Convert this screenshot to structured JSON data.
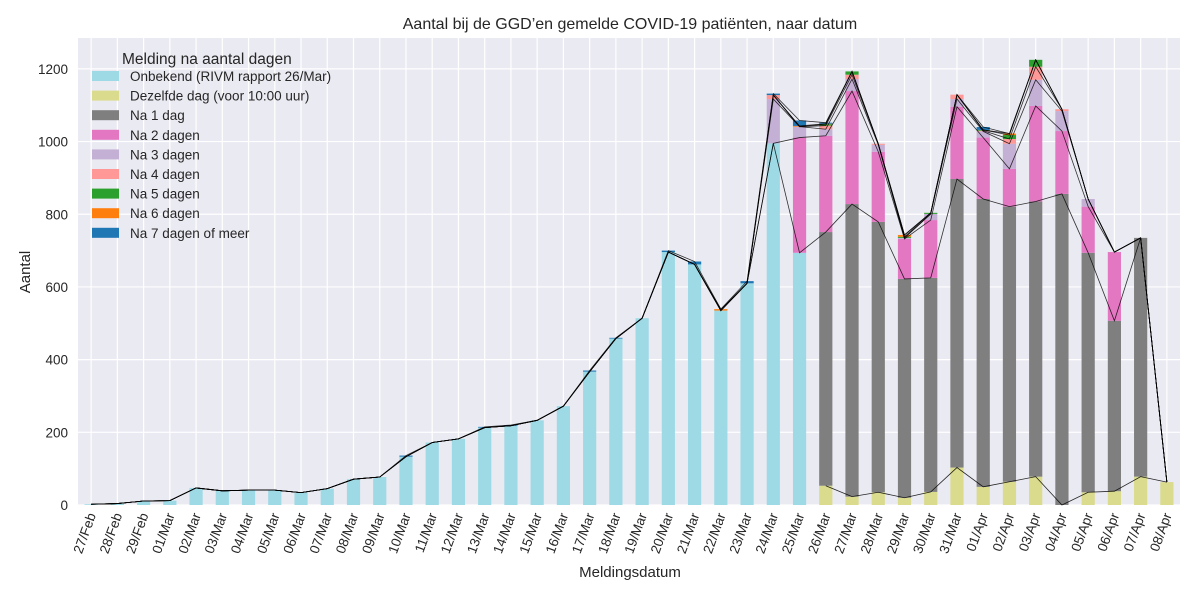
{
  "chart_data": {
    "type": "bar",
    "stacked": true,
    "title": "Aantal bij de GGD’en gemelde COVID-19 patiënten, naar datum",
    "xlabel": "Meldingsdatum",
    "ylabel": "Aantal",
    "ylim": [
      0,
      1285
    ],
    "yticks": [
      0,
      200,
      400,
      600,
      800,
      1000,
      1200
    ],
    "grid": true,
    "legend": {
      "title": "Melding na aantal dagen",
      "placement": "top-left"
    },
    "categories": [
      "27/Feb",
      "28/Feb",
      "29/Feb",
      "01/Mar",
      "02/Mar",
      "03/Mar",
      "04/Mar",
      "05/Mar",
      "06/Mar",
      "07/Mar",
      "08/Mar",
      "09/Mar",
      "10/Mar",
      "11/Mar",
      "12/Mar",
      "13/Mar",
      "14/Mar",
      "15/Mar",
      "16/Mar",
      "17/Mar",
      "18/Mar",
      "19/Mar",
      "20/Mar",
      "21/Mar",
      "22/Mar",
      "23/Mar",
      "24/Mar",
      "25/Mar",
      "26/Mar",
      "27/Mar",
      "28/Mar",
      "29/Mar",
      "30/Mar",
      "31/Mar",
      "01/Apr",
      "02/Apr",
      "03/Apr",
      "04/Apr",
      "05/Apr",
      "06/Apr",
      "07/Apr",
      "08/Apr"
    ],
    "series": [
      {
        "name": "Onbekend (RIVM rapport 26/Mar)",
        "color": "#9edae5",
        "values": [
          2,
          4,
          11,
          12,
          47,
          39,
          41,
          41,
          34,
          45,
          71,
          77,
          133,
          172,
          182,
          213,
          218,
          233,
          272,
          367,
          458,
          514,
          696,
          662,
          535,
          610,
          995,
          694,
          0,
          0,
          0,
          0,
          0,
          0,
          0,
          0,
          0,
          0,
          0,
          0,
          0,
          0
        ]
      },
      {
        "name": "Dezelfde dag (voor 10:00 uur)",
        "color": "#dbdb8d",
        "values": [
          0,
          0,
          0,
          0,
          0,
          0,
          0,
          0,
          0,
          0,
          0,
          0,
          0,
          0,
          0,
          0,
          0,
          0,
          0,
          0,
          0,
          0,
          0,
          0,
          0,
          0,
          0,
          0,
          53,
          23,
          35,
          20,
          36,
          103,
          50,
          64,
          78,
          0,
          35,
          38,
          78,
          63
        ]
      },
      {
        "name": "Na 1 dag",
        "color": "#7f7f7f",
        "values": [
          0,
          0,
          0,
          0,
          0,
          0,
          0,
          0,
          0,
          0,
          0,
          0,
          0,
          0,
          0,
          0,
          0,
          0,
          0,
          0,
          0,
          0,
          0,
          0,
          0,
          0,
          0,
          0,
          698,
          805,
          744,
          602,
          589,
          794,
          792,
          757,
          757,
          856,
          659,
          469,
          657,
          0
        ]
      },
      {
        "name": "Na 2 dagen",
        "color": "#e377c2",
        "values": [
          0,
          0,
          0,
          0,
          0,
          0,
          0,
          0,
          0,
          0,
          0,
          0,
          0,
          0,
          0,
          0,
          0,
          0,
          0,
          0,
          0,
          0,
          0,
          0,
          0,
          0,
          0,
          317,
          265,
          311,
          193,
          110,
          159,
          199,
          169,
          104,
          263,
          173,
          127,
          189,
          0,
          0
        ]
      },
      {
        "name": "Na 3 dagen",
        "color": "#c5b0d5",
        "values": [
          0,
          0,
          0,
          0,
          0,
          0,
          0,
          0,
          0,
          0,
          0,
          0,
          0,
          0,
          0,
          0,
          0,
          0,
          0,
          0,
          0,
          0,
          0,
          0,
          0,
          0,
          122,
          30,
          18,
          33,
          19,
          3,
          17,
          21,
          17,
          69,
          72,
          55,
          21,
          0,
          0,
          0
        ]
      },
      {
        "name": "Na 4 dagen",
        "color": "#ff9896",
        "values": [
          0,
          0,
          0,
          0,
          0,
          0,
          0,
          0,
          0,
          0,
          0,
          0,
          0,
          0,
          0,
          0,
          0,
          0,
          0,
          0,
          0,
          0,
          0,
          0,
          0,
          0,
          11,
          0,
          10,
          12,
          3,
          0,
          0,
          12,
          2,
          13,
          36,
          5,
          0,
          0,
          0,
          0
        ]
      },
      {
        "name": "Na 5 dagen",
        "color": "#2ca02c",
        "values": [
          0,
          0,
          0,
          0,
          0,
          0,
          0,
          0,
          0,
          0,
          0,
          0,
          0,
          0,
          0,
          0,
          0,
          0,
          0,
          0,
          0,
          0,
          0,
          0,
          0,
          0,
          0,
          0,
          4,
          9,
          0,
          3,
          3,
          0,
          2,
          11,
          19,
          0,
          0,
          0,
          0,
          0
        ]
      },
      {
        "name": "Na 6 dagen",
        "color": "#ff7f0e",
        "values": [
          0,
          0,
          0,
          0,
          0,
          0,
          0,
          0,
          0,
          0,
          0,
          0,
          0,
          0,
          0,
          0,
          0,
          0,
          0,
          0,
          0,
          0,
          0,
          0,
          4,
          0,
          0,
          2,
          1,
          0,
          0,
          5,
          0,
          0,
          0,
          4,
          0,
          0,
          0,
          0,
          0,
          0
        ]
      },
      {
        "name": "Na 7 dagen of meer",
        "color": "#1f77b4",
        "values": [
          0,
          0,
          0,
          0,
          0,
          0,
          0,
          0,
          0,
          0,
          0,
          0,
          3,
          0,
          0,
          2,
          2,
          0,
          0,
          3,
          2,
          0,
          4,
          8,
          0,
          6,
          4,
          15,
          3,
          0,
          0,
          0,
          0,
          0,
          8,
          0,
          0,
          0,
          0,
          0,
          0,
          0
        ]
      }
    ],
    "background": "#eaeaf2"
  }
}
